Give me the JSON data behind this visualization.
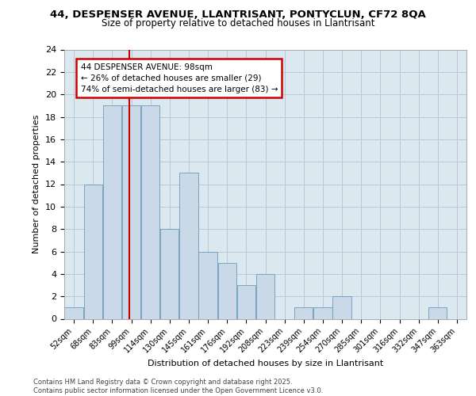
{
  "title_line1": "44, DESPENSER AVENUE, LLANTRISANT, PONTYCLUN, CF72 8QA",
  "title_line2": "Size of property relative to detached houses in Llantrisant",
  "xlabel": "Distribution of detached houses by size in Llantrisant",
  "ylabel": "Number of detached properties",
  "categories": [
    "52sqm",
    "68sqm",
    "83sqm",
    "99sqm",
    "114sqm",
    "130sqm",
    "145sqm",
    "161sqm",
    "176sqm",
    "192sqm",
    "208sqm",
    "223sqm",
    "239sqm",
    "254sqm",
    "270sqm",
    "285sqm",
    "301sqm",
    "316sqm",
    "332sqm",
    "347sqm",
    "363sqm"
  ],
  "values": [
    1,
    12,
    19,
    19,
    19,
    8,
    13,
    6,
    5,
    3,
    4,
    0,
    1,
    1,
    2,
    0,
    0,
    0,
    0,
    1,
    0
  ],
  "bar_color": "#c9d9e8",
  "bar_edge_color": "#6a9ab8",
  "ylim": [
    0,
    24
  ],
  "yticks": [
    0,
    2,
    4,
    6,
    8,
    10,
    12,
    14,
    16,
    18,
    20,
    22,
    24
  ],
  "annotation_title": "44 DESPENSER AVENUE: 98sqm",
  "annotation_line1": "← 26% of detached houses are smaller (29)",
  "annotation_line2": "74% of semi-detached houses are larger (83) →",
  "annotation_box_color": "#ffffff",
  "annotation_box_edge_color": "#cc0000",
  "subject_line_color": "#cc0000",
  "grid_color": "#b8c8d8",
  "background_color": "#dce8f0",
  "footer_line1": "Contains HM Land Registry data © Crown copyright and database right 2025.",
  "footer_line2": "Contains public sector information licensed under the Open Government Licence v3.0."
}
